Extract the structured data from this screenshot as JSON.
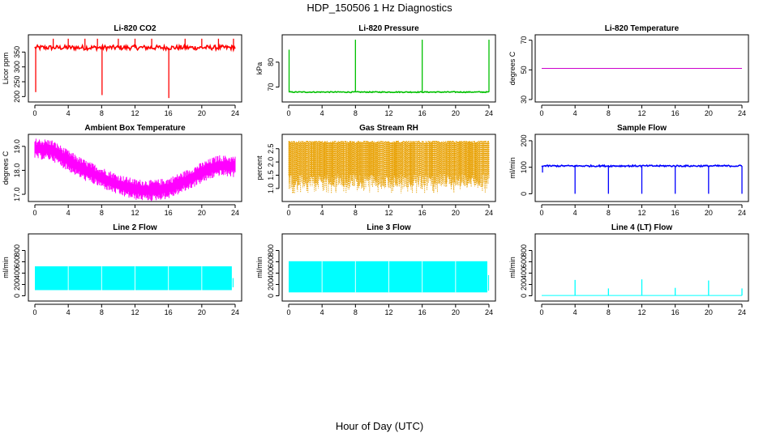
{
  "figure": {
    "title": "HDP_150506  1 Hz Diagnostics",
    "xlabel": "Hour of Day (UTC)"
  },
  "chart_data": [
    {
      "type": "line",
      "title": "Li-820 CO2",
      "ylabel": "Licor ppm",
      "color": "#ff0000",
      "xlim": [
        0,
        24
      ],
      "ylim": [
        190,
        400
      ],
      "xticks": [
        0,
        4,
        8,
        12,
        16,
        20,
        24
      ],
      "yticks": [
        200,
        250,
        300,
        350
      ],
      "baseline": 365,
      "noise": 8,
      "spikes": [
        {
          "x": 0.1,
          "y": 215
        },
        {
          "x": 2.2,
          "y": 395
        },
        {
          "x": 4.0,
          "y": 395
        },
        {
          "x": 6.0,
          "y": 395
        },
        {
          "x": 7.5,
          "y": 395
        },
        {
          "x": 8.05,
          "y": 205
        },
        {
          "x": 10.0,
          "y": 395
        },
        {
          "x": 12.0,
          "y": 395
        },
        {
          "x": 14.0,
          "y": 395
        },
        {
          "x": 16.05,
          "y": 195
        },
        {
          "x": 18.0,
          "y": 395
        },
        {
          "x": 20.0,
          "y": 395
        },
        {
          "x": 22.0,
          "y": 395
        },
        {
          "x": 23.8,
          "y": 395
        }
      ]
    },
    {
      "type": "line",
      "title": "Li-820 Pressure",
      "ylabel": "kPa",
      "color": "#00c000",
      "xlim": [
        0,
        24
      ],
      "ylim": [
        65,
        90
      ],
      "xticks": [
        0,
        4,
        8,
        12,
        16,
        20,
        24
      ],
      "yticks": [
        70,
        80
      ],
      "baseline": 68,
      "noise": 0.2,
      "spikes": [
        {
          "x": 0.05,
          "y": 85
        },
        {
          "x": 8.0,
          "y": 89
        },
        {
          "x": 16.0,
          "y": 89
        },
        {
          "x": 24.0,
          "y": 89
        }
      ]
    },
    {
      "type": "line",
      "title": "Li-820 Temperature",
      "ylabel": "degrees C",
      "color": "#cc00cc",
      "xlim": [
        0,
        24
      ],
      "ylim": [
        30,
        72
      ],
      "xticks": [
        0,
        4,
        8,
        12,
        16,
        20,
        24
      ],
      "yticks": [
        30,
        50,
        70
      ],
      "baseline": 51,
      "noise": 0,
      "spikes": []
    },
    {
      "type": "line",
      "title": "Ambient Box Temperature",
      "ylabel": "degrees C",
      "color": "#ff00ff",
      "xlim": [
        0,
        24
      ],
      "ylim": [
        16.8,
        19.4
      ],
      "xticks": [
        0,
        4,
        8,
        12,
        16,
        20,
        24
      ],
      "yticks": [
        17.0,
        18.0,
        19.0
      ],
      "ytick_labels": [
        "17.0",
        "18.0",
        "19.0"
      ],
      "curve": [
        {
          "x": 0,
          "y": 18.9
        },
        {
          "x": 2,
          "y": 18.85
        },
        {
          "x": 4,
          "y": 18.4
        },
        {
          "x": 6,
          "y": 18.0
        },
        {
          "x": 8,
          "y": 17.7
        },
        {
          "x": 10,
          "y": 17.4
        },
        {
          "x": 12,
          "y": 17.2
        },
        {
          "x": 14,
          "y": 17.15
        },
        {
          "x": 16,
          "y": 17.25
        },
        {
          "x": 18,
          "y": 17.55
        },
        {
          "x": 20,
          "y": 17.9
        },
        {
          "x": 22,
          "y": 18.2
        },
        {
          "x": 24,
          "y": 18.15
        }
      ],
      "band": 0.55
    },
    {
      "type": "scatter",
      "title": "Gas Stream RH",
      "ylabel": "percent",
      "color": "#e8a000",
      "xlim": [
        0,
        24
      ],
      "ylim": [
        0.6,
        2.95
      ],
      "xticks": [
        0,
        4,
        8,
        12,
        16,
        20,
        24
      ],
      "yticks": [
        1.0,
        1.5,
        2.0,
        2.5
      ],
      "ytick_labels": [
        "1.0",
        "1.5",
        "2.0",
        "2.5"
      ],
      "upper": 2.75,
      "lower": 1.3,
      "floor": 0.8
    },
    {
      "type": "line",
      "title": "Sample Flow",
      "ylabel": "ml/min",
      "color": "#0000ff",
      "xlim": [
        0,
        24
      ],
      "ylim": [
        -20,
        215
      ],
      "xticks": [
        0,
        4,
        8,
        12,
        16,
        20,
        24
      ],
      "yticks": [
        0,
        100,
        200
      ],
      "baseline": 105,
      "noise": 3,
      "spikes": [
        {
          "x": 0.1,
          "y": 80
        },
        {
          "x": 4.0,
          "y": 0
        },
        {
          "x": 8.0,
          "y": 0
        },
        {
          "x": 12.0,
          "y": 0
        },
        {
          "x": 16.0,
          "y": 0
        },
        {
          "x": 20.0,
          "y": 0
        },
        {
          "x": 24.0,
          "y": 0
        }
      ]
    },
    {
      "type": "area",
      "title": "Line 2 Flow",
      "ylabel": "ml/min",
      "color": "#00ffff",
      "xlim": [
        0,
        24
      ],
      "ylim": [
        -50,
        1050
      ],
      "xticks": [
        0,
        4,
        8,
        12,
        16,
        20,
        24
      ],
      "yticks": [
        0,
        200,
        400,
        600,
        800
      ],
      "upper": 520,
      "lower": 100,
      "gaps": [
        4,
        8,
        12,
        16,
        20
      ],
      "xend": 23.6
    },
    {
      "type": "area",
      "title": "Line 3 Flow",
      "ylabel": "ml/min",
      "color": "#00ffff",
      "xlim": [
        0,
        24
      ],
      "ylim": [
        -50,
        1050
      ],
      "xticks": [
        0,
        4,
        8,
        12,
        16,
        20,
        24
      ],
      "yticks": [
        0,
        200,
        400,
        600,
        800
      ],
      "upper": 610,
      "lower": 60,
      "gaps": [
        4,
        8,
        12,
        16,
        20
      ],
      "xend": 23.8
    },
    {
      "type": "line",
      "title": "Line 4 (LT) Flow",
      "ylabel": "ml/min",
      "color": "#00ffff",
      "xlim": [
        0,
        24
      ],
      "ylim": [
        -50,
        1050
      ],
      "xticks": [
        0,
        4,
        8,
        12,
        16,
        20,
        24
      ],
      "yticks": [
        0,
        200,
        400,
        600,
        800
      ],
      "baseline": 5,
      "noise": 0,
      "spikes": [
        {
          "x": 4.0,
          "y": 280
        },
        {
          "x": 8.0,
          "y": 130
        },
        {
          "x": 12.0,
          "y": 290
        },
        {
          "x": 16.0,
          "y": 140
        },
        {
          "x": 20.0,
          "y": 270
        },
        {
          "x": 24.0,
          "y": 130
        }
      ]
    }
  ]
}
